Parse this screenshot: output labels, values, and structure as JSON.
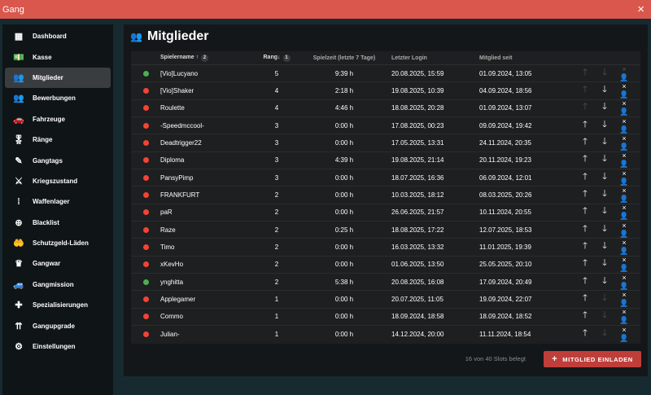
{
  "window": {
    "title": "Gang",
    "close_icon": "×"
  },
  "sidebar": {
    "items": [
      {
        "label": "Dashboard",
        "icon": "▦"
      },
      {
        "label": "Kasse",
        "icon": "💵"
      },
      {
        "label": "Mitglieder",
        "icon": "👥",
        "active": true
      },
      {
        "label": "Bewerbungen",
        "icon": "👥"
      },
      {
        "label": "Fahrzeuge",
        "icon": "🚗"
      },
      {
        "label": "Ränge",
        "icon": "🎖"
      },
      {
        "label": "Gangtags",
        "icon": "✎"
      },
      {
        "label": "Kriegszustand",
        "icon": "⚔"
      },
      {
        "label": "Waffenlager",
        "icon": "⁞"
      },
      {
        "label": "Blacklist",
        "icon": "⊕"
      },
      {
        "label": "Schutzgeld-Läden",
        "icon": "🤲"
      },
      {
        "label": "Gangwar",
        "icon": "♛"
      },
      {
        "label": "Gangmission",
        "icon": "🚙"
      },
      {
        "label": "Spezialisierungen",
        "icon": "✚"
      },
      {
        "label": "Gangupgrade",
        "icon": "⇈"
      },
      {
        "label": "Einstellungen",
        "icon": "⚙"
      }
    ]
  },
  "main": {
    "title": "Mitglieder",
    "columns": {
      "name": "Spielername",
      "name_sort": "↑",
      "name_badge": "2",
      "rank": "Rang",
      "rank_sort": "↓",
      "rank_badge": "1",
      "playtime": "Spielzeit (letzte 7 Tage)",
      "last_login": "Letzter Login",
      "member_since": "Mitglied seit"
    },
    "status_colors": {
      "online": "#4caf50",
      "offline": "#f44336"
    },
    "rows": [
      {
        "status": "online",
        "name": "[Vio]Lucyano",
        "rank": "5",
        "playtime": "9:39 h",
        "last_login": "20.08.2025, 15:59",
        "since": "01.09.2024, 13:05",
        "up": false,
        "down": false,
        "kick": false
      },
      {
        "status": "offline",
        "name": "[Vio]Shaker",
        "rank": "4",
        "playtime": "2:18 h",
        "last_login": "19.08.2025, 10:39",
        "since": "04.09.2024, 18:56",
        "up": false,
        "down": true,
        "kick": true
      },
      {
        "status": "offline",
        "name": "Roulette",
        "rank": "4",
        "playtime": "4:46 h",
        "last_login": "18.08.2025, 20:28",
        "since": "01.09.2024, 13:07",
        "up": false,
        "down": true,
        "kick": true
      },
      {
        "status": "offline",
        "name": "-Speedmccool-",
        "rank": "3",
        "playtime": "0:00 h",
        "last_login": "17.08.2025, 00:23",
        "since": "09.09.2024, 19:42",
        "up": true,
        "down": true,
        "kick": true
      },
      {
        "status": "offline",
        "name": "Deadtrigger22",
        "rank": "3",
        "playtime": "0:00 h",
        "last_login": "17.05.2025, 13:31",
        "since": "24.11.2024, 20:35",
        "up": true,
        "down": true,
        "kick": true
      },
      {
        "status": "offline",
        "name": "Diploma",
        "rank": "3",
        "playtime": "4:39 h",
        "last_login": "19.08.2025, 21:14",
        "since": "20.11.2024, 19:23",
        "up": true,
        "down": true,
        "kick": true
      },
      {
        "status": "offline",
        "name": "PansyPimp",
        "rank": "3",
        "playtime": "0:00 h",
        "last_login": "18.07.2025, 16:36",
        "since": "06.09.2024, 12:01",
        "up": true,
        "down": true,
        "kick": true
      },
      {
        "status": "offline",
        "name": "FRANKFURT",
        "rank": "2",
        "playtime": "0:00 h",
        "last_login": "10.03.2025, 18:12",
        "since": "08.03.2025, 20:26",
        "up": true,
        "down": true,
        "kick": true
      },
      {
        "status": "offline",
        "name": "paR",
        "rank": "2",
        "playtime": "0:00 h",
        "last_login": "26.06.2025, 21:57",
        "since": "10.11.2024, 20:55",
        "up": true,
        "down": true,
        "kick": true
      },
      {
        "status": "offline",
        "name": "Raze",
        "rank": "2",
        "playtime": "0:25 h",
        "last_login": "18.08.2025, 17:22",
        "since": "12.07.2025, 18:53",
        "up": true,
        "down": true,
        "kick": true
      },
      {
        "status": "offline",
        "name": "Timo",
        "rank": "2",
        "playtime": "0:00 h",
        "last_login": "16.03.2025, 13:32",
        "since": "11.01.2025, 19:39",
        "up": true,
        "down": true,
        "kick": true
      },
      {
        "status": "offline",
        "name": "xKevHo",
        "rank": "2",
        "playtime": "0:00 h",
        "last_login": "01.06.2025, 13:50",
        "since": "25.05.2025, 20:10",
        "up": true,
        "down": true,
        "kick": true
      },
      {
        "status": "online",
        "name": "ynghitta",
        "rank": "2",
        "playtime": "5:38 h",
        "last_login": "20.08.2025, 16:08",
        "since": "17.09.2024, 20:49",
        "up": true,
        "down": true,
        "kick": true
      },
      {
        "status": "offline",
        "name": "Applegamer",
        "rank": "1",
        "playtime": "0:00 h",
        "last_login": "20.07.2025, 11:05",
        "since": "19.09.2024, 22:07",
        "up": true,
        "down": false,
        "kick": true
      },
      {
        "status": "offline",
        "name": "Commo",
        "rank": "1",
        "playtime": "0:00 h",
        "last_login": "18.09.2024, 18:58",
        "since": "18.09.2024, 18:52",
        "up": true,
        "down": false,
        "kick": true
      },
      {
        "status": "offline",
        "name": "Julian-",
        "rank": "1",
        "playtime": "0:00 h",
        "last_login": "14.12.2024, 20:00",
        "since": "11.11.2024, 18:54",
        "up": true,
        "down": false,
        "kick": true
      }
    ],
    "slots_text": "16 von 40 Slots belegt",
    "invite_label": "MITGLIED EINLADEN",
    "invite_icon": "+"
  }
}
